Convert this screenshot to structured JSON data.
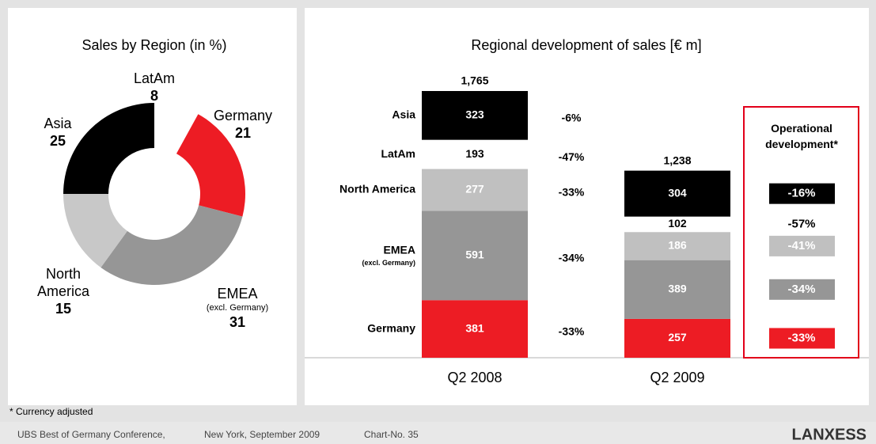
{
  "chart_data": [
    {
      "type": "pie",
      "title": "Sales by Region (in %)",
      "categories": [
        "LatAm",
        "Germany",
        "EMEA",
        "North America",
        "Asia"
      ],
      "sublabels": [
        null,
        null,
        "(excl. Germany)",
        null,
        null
      ],
      "values": [
        8,
        21,
        31,
        15,
        25
      ],
      "colors": [
        "#ffffff",
        "#ed1c24",
        "#969696",
        "#c8c8c8",
        "#000000"
      ],
      "hole": true
    },
    {
      "type": "stacked-bar",
      "title": "Regional development of sales [€ m]",
      "categories": [
        "Q2 2008",
        "Q2 2009"
      ],
      "series": [
        {
          "name": "Germany",
          "color": "#ed1c24",
          "label_color": "#ffffff",
          "values": [
            381,
            257
          ],
          "change": "-33%",
          "operational": "-33%"
        },
        {
          "name": "EMEA",
          "sublabel": "(excl. Germany)",
          "color": "#969696",
          "label_color": "#ffffff",
          "values": [
            591,
            389
          ],
          "change": "-34%",
          "operational": "-34%"
        },
        {
          "name": "North America",
          "color": "#c0c0c0",
          "label_color": "#ffffff",
          "values": [
            277,
            186
          ],
          "change": "-33%",
          "operational": "-41%"
        },
        {
          "name": "LatAm",
          "color": "#ffffff",
          "label_color": "#000000",
          "values": [
            193,
            102
          ],
          "change": "-47%",
          "operational": "-57%"
        },
        {
          "name": "Asia",
          "color": "#000000",
          "label_color": "#ffffff",
          "values": [
            323,
            304
          ],
          "change": "-6%",
          "operational": "-16%"
        }
      ],
      "totals": [
        1765,
        1238
      ],
      "total_labels": [
        "1,765",
        "1,238"
      ],
      "operational_title": "Operational development*",
      "ylim": [
        0,
        1765
      ]
    }
  ],
  "footnote": "* Currency adjusted",
  "footer": [
    "UBS Best of Germany Conference,",
    "New York, September 2009",
    "Chart-No. 35"
  ],
  "logo": "LANXESS"
}
